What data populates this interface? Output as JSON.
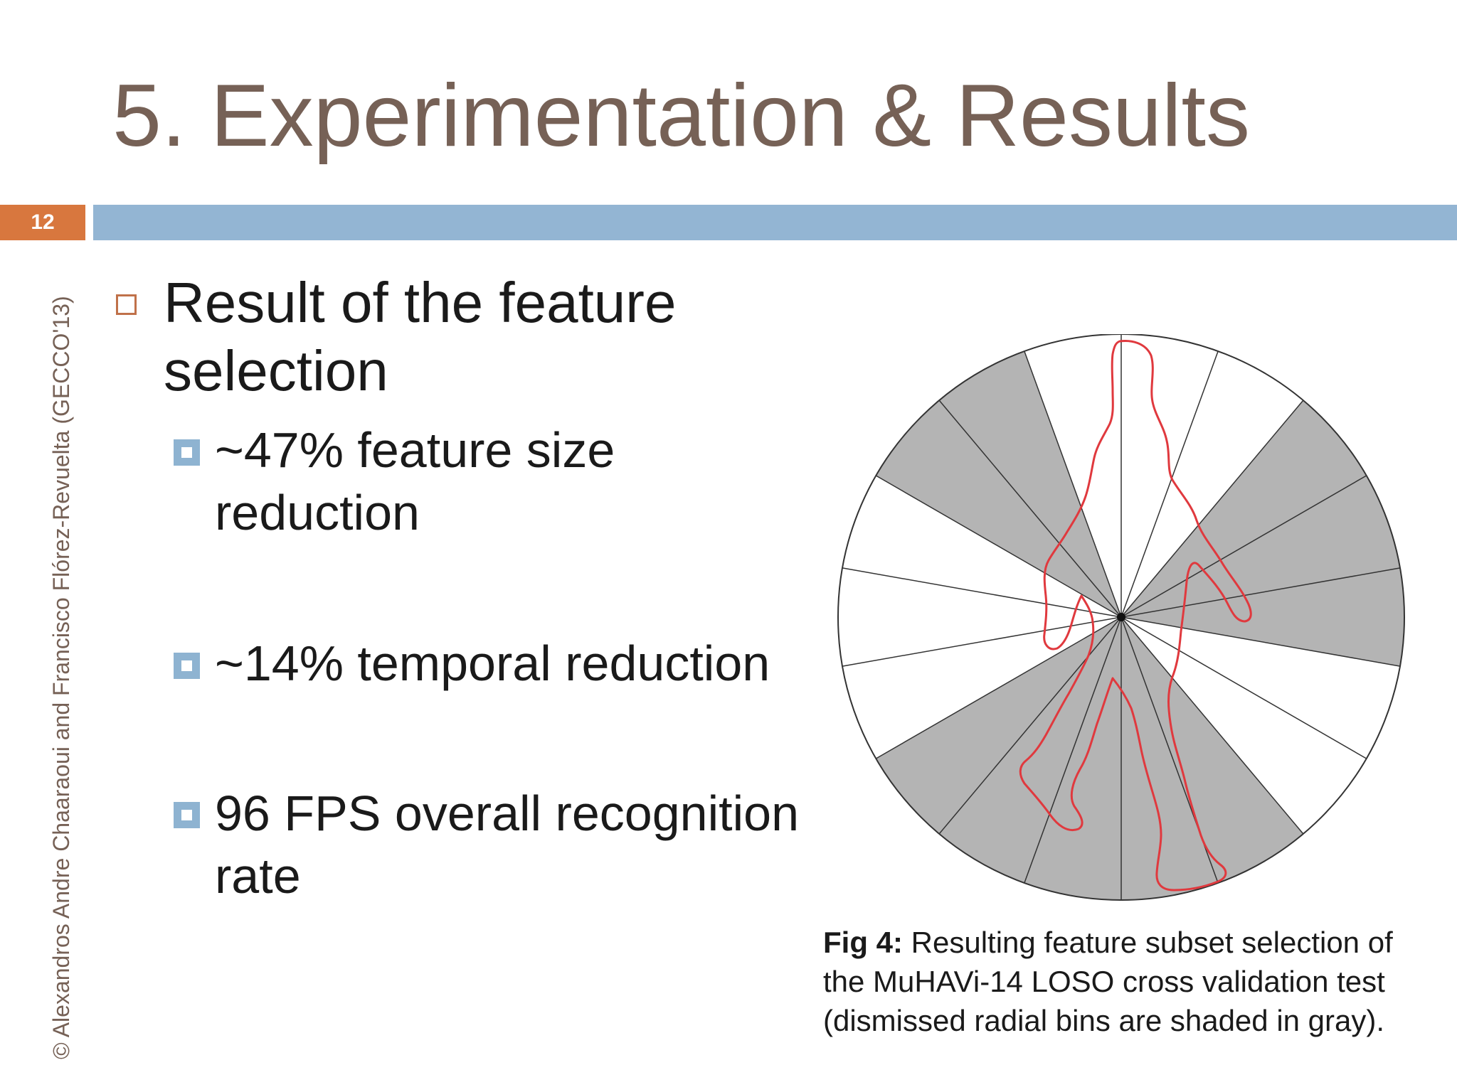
{
  "slide": {
    "title": "5. Experimentation & Results",
    "number": "12",
    "copyright": "© Alexandros Andre Chaaraoui and Francisco Flórez-Revuelta (GECCO'13)"
  },
  "bullets": {
    "main": "Result of the feature selection",
    "items": [
      "~47% feature size reduction",
      "~14% temporal reduction",
      "96 FPS overall recognition rate"
    ]
  },
  "figure": {
    "caption_label": "Fig 4:",
    "caption_text": " Resulting feature subset selection of the MuHAVi-14 LOSO cross validation test (dismissed radial bins are shaded in gray).",
    "dismissed_bin_color": "#B4B4B4",
    "silhouette_color": "#E0393E",
    "bins": [
      false,
      false,
      true,
      true,
      true,
      false,
      false,
      true,
      true,
      true,
      true,
      true,
      false,
      false,
      false,
      true,
      true,
      false
    ]
  }
}
